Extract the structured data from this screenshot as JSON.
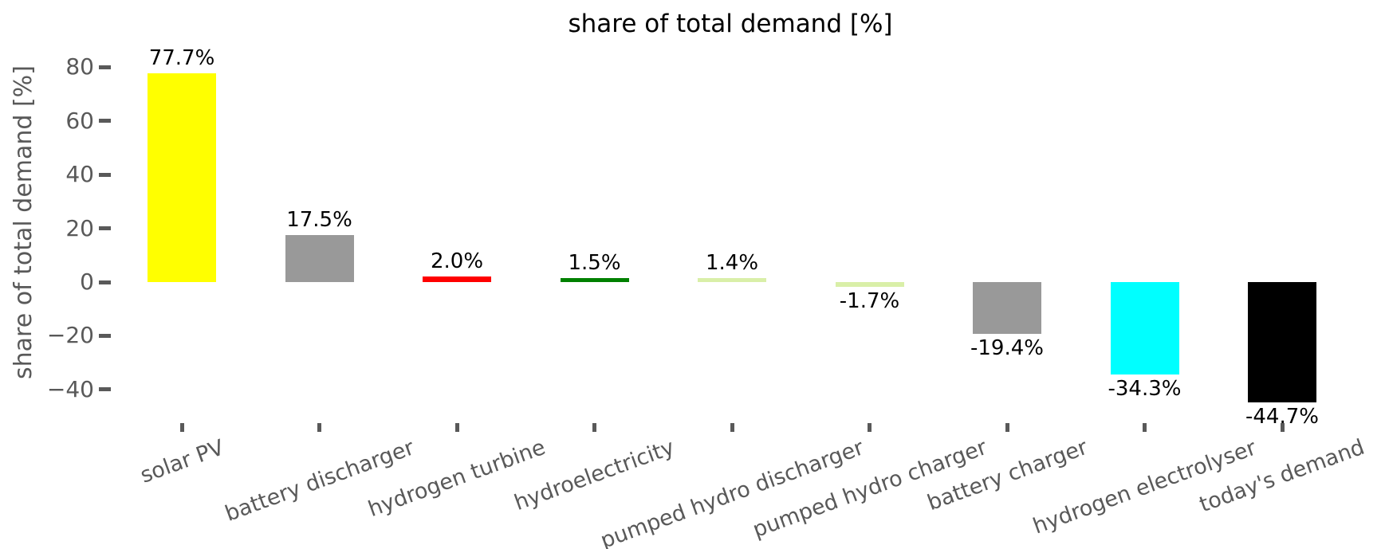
{
  "chart_data": {
    "type": "bar",
    "title": "share of total demand [%]",
    "xlabel": "",
    "ylabel": "share of total demand [%]",
    "categories": [
      "solar PV",
      "battery discharger",
      "hydrogen turbine",
      "hydroelectricity",
      "pumped hydro discharger",
      "pumped hydro charger",
      "battery charger",
      "hydrogen electrolyser",
      "today's demand"
    ],
    "values": [
      77.7,
      17.5,
      2.0,
      1.5,
      1.4,
      -1.7,
      -19.4,
      -34.3,
      -44.7
    ],
    "bar_labels": [
      "77.7%",
      "17.5%",
      "2.0%",
      "1.5%",
      "1.4%",
      "-1.7%",
      "-19.4%",
      "-34.3%",
      "-44.7%"
    ],
    "bar_colors": [
      "#ffff00",
      "#999999",
      "#ff0000",
      "#008000",
      "#d9efa8",
      "#d9efa8",
      "#999999",
      "#00ffff",
      "#000000"
    ],
    "ytick_values": [
      80,
      60,
      40,
      20,
      0,
      -20,
      -40
    ],
    "ytick_labels": [
      "80",
      "60",
      "40",
      "20",
      "0",
      "−20",
      "−40"
    ],
    "ylim": [
      -57,
      92
    ],
    "grid": false,
    "legend_position": "none",
    "axis_color": "#595959",
    "label_color": "#000000",
    "background_color": "#ffffff"
  }
}
